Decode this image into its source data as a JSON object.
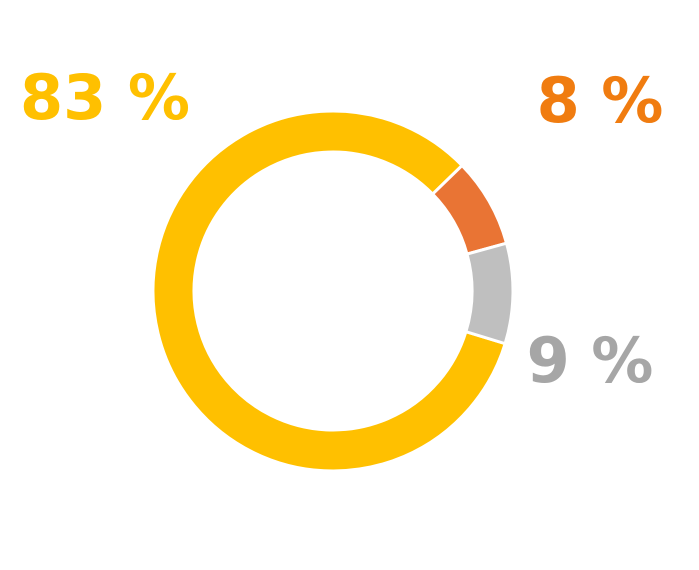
{
  "chart_data": {
    "type": "donut",
    "values": [
      83,
      8,
      9
    ],
    "value_labels": [
      "83 %",
      "8 %",
      "9 %"
    ],
    "colors": [
      "#ffc000",
      "#e97434",
      "#bfbfbf"
    ],
    "label_colors": [
      "#ffc000",
      "#f07c10",
      "#a6a6a6"
    ]
  }
}
